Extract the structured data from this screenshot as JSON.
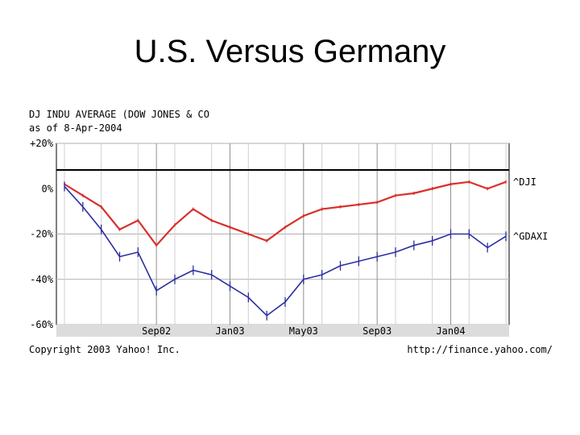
{
  "slide": {
    "title": "U.S. Versus Germany"
  },
  "chart_data": {
    "type": "line",
    "title": "DJ INDU AVERAGE (DOW JONES & CO",
    "subtitle": "as of  8-Apr-2004",
    "y_tick_labels": [
      "+20%",
      "0%",
      "-20%",
      "-40%",
      "-60%"
    ],
    "ylim": [
      -60,
      20
    ],
    "x_tick_labels": [
      "Sep02",
      "Jan03",
      "May03",
      "Sep03",
      "Jan04"
    ],
    "grid": true,
    "copyright": "Copyright 2003 Yahoo! Inc.",
    "source_url": "http://finance.yahoo.com/",
    "series": [
      {
        "name": "^DJI",
        "color": "#d9302c",
        "x": [
          "Apr02",
          "May02",
          "Jun02",
          "Jul02",
          "Aug02",
          "Sep02",
          "Oct02",
          "Nov02",
          "Dec02",
          "Jan03",
          "Feb03",
          "Mar03",
          "Apr03",
          "May03",
          "Jun03",
          "Jul03",
          "Aug03",
          "Sep03",
          "Oct03",
          "Nov03",
          "Dec03",
          "Jan04",
          "Feb04",
          "Mar04",
          "Apr04"
        ],
        "values": [
          2,
          -3,
          -8,
          -18,
          -14,
          -25,
          -16,
          -9,
          -14,
          -17,
          -20,
          -23,
          -17,
          -12,
          -9,
          -8,
          -7,
          -6,
          -3,
          -2,
          0,
          2,
          3,
          0,
          3
        ]
      },
      {
        "name": "^GDAXI",
        "color": "#2b2fa0",
        "x": [
          "Apr02",
          "May02",
          "Jun02",
          "Jul02",
          "Aug02",
          "Sep02",
          "Oct02",
          "Nov02",
          "Dec02",
          "Jan03",
          "Feb03",
          "Mar03",
          "Apr03",
          "May03",
          "Jun03",
          "Jul03",
          "Aug03",
          "Sep03",
          "Oct03",
          "Nov03",
          "Dec03",
          "Jan04",
          "Feb04",
          "Mar04",
          "Apr04"
        ],
        "values": [
          1,
          -8,
          -18,
          -30,
          -28,
          -45,
          -40,
          -36,
          -38,
          -43,
          -48,
          -56,
          -50,
          -40,
          -38,
          -34,
          -32,
          -30,
          -28,
          -25,
          -23,
          -20,
          -20,
          -26,
          -21
        ]
      }
    ]
  }
}
